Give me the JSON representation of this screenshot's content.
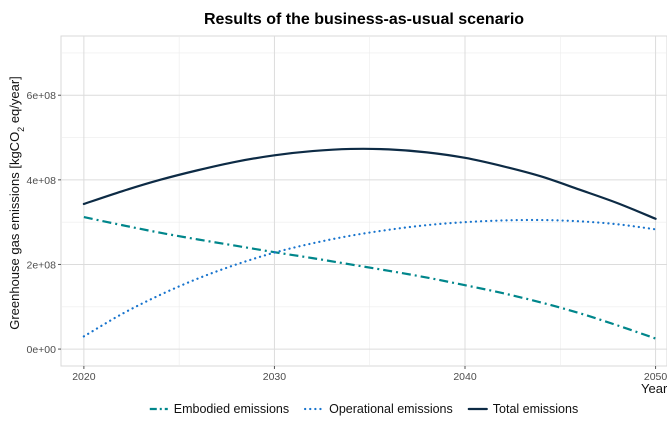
{
  "chart_data": {
    "type": "line",
    "title": "Results of the business-as-usual scenario",
    "xlabel": "Year",
    "ylabel": {
      "prefix": "Greenhouse gas emissions [kgCO",
      "subscript": "2",
      "suffix": " eq/year]"
    },
    "xlim": [
      2018.8,
      2050.6
    ],
    "ylim": [
      -40000000,
      740000000
    ],
    "x_ticks": [
      2020,
      2030,
      2040,
      2050
    ],
    "x_tick_labels": [
      "2020",
      "2030",
      "2040",
      "2050"
    ],
    "y_ticks": [
      0,
      200000000,
      400000000,
      600000000
    ],
    "y_tick_labels": [
      "0e+00",
      "2e+08",
      "4e+08",
      "6e+08"
    ],
    "grid": true,
    "legend_position": "bottom",
    "series": [
      {
        "name": "Embodied emissions",
        "color": "#00868b",
        "line_style": "dashdot",
        "x": [
          2020,
          2022,
          2024,
          2026,
          2028,
          2030,
          2032,
          2034,
          2036,
          2038,
          2040,
          2042,
          2044,
          2046,
          2048,
          2050
        ],
        "values": [
          312000000,
          293000000,
          275000000,
          259000000,
          244000000,
          229000000,
          215000000,
          200000000,
          185000000,
          169000000,
          151000000,
          132000000,
          110000000,
          85000000,
          56000000,
          25000000
        ]
      },
      {
        "name": "Operational emissions",
        "color": "#1874cd",
        "line_style": "dotted",
        "x": [
          2020,
          2022,
          2024,
          2026,
          2028,
          2030,
          2032,
          2034,
          2036,
          2038,
          2040,
          2042,
          2044,
          2046,
          2048,
          2050
        ],
        "values": [
          30000000,
          83000000,
          128000000,
          167000000,
          200000000,
          228000000,
          250000000,
          268000000,
          282000000,
          293000000,
          300000000,
          304000000,
          305000000,
          302000000,
          295000000,
          283000000
        ]
      },
      {
        "name": "Total emissions",
        "color": "#0d2b45",
        "line_style": "solid",
        "x": [
          2020,
          2022,
          2024,
          2026,
          2028,
          2030,
          2032,
          2034,
          2036,
          2038,
          2040,
          2042,
          2044,
          2046,
          2048,
          2050
        ],
        "values": [
          343000000,
          373000000,
          400000000,
          423000000,
          443000000,
          458000000,
          468000000,
          473000000,
          472000000,
          465000000,
          452000000,
          432000000,
          408000000,
          377000000,
          345000000,
          308000000
        ]
      }
    ]
  }
}
